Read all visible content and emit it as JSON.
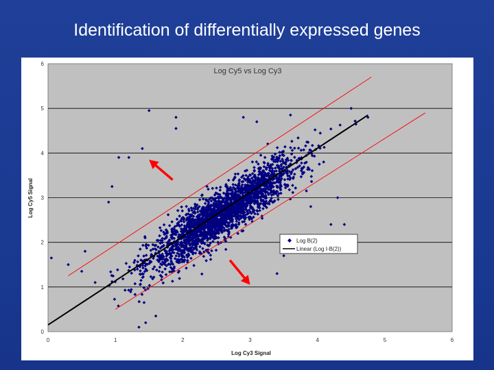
{
  "slide": {
    "title": "Identification of differentially expressed genes"
  },
  "colors": {
    "background": "#1f3f98",
    "plot_area": "#c0c0c0",
    "points": "#000080",
    "fit_line": "#000000",
    "threshold_lines": "#ff0000",
    "arrows": "#ff0000"
  },
  "chart_data": {
    "type": "scatter",
    "title": "Log Cy5 vs Log Cy3",
    "xlabel": "Log Cy3 Signal",
    "ylabel": "Log Cy5 Signal",
    "xlim": [
      0,
      6
    ],
    "ylim": [
      0,
      6
    ],
    "xticks": [
      "0",
      "1",
      "2",
      "3",
      "4",
      "5",
      "6"
    ],
    "yticks": [
      "0",
      "1",
      "2",
      "3",
      "4",
      "5",
      "6"
    ],
    "grid": "horizontal",
    "legend": {
      "placement": "right-center",
      "entries": [
        "Log B(2)",
        "Linear (Log I-B(2))"
      ]
    },
    "point_cloud": {
      "description_range": "dense cloud along y = x",
      "x_range": [
        0.8,
        4.8
      ],
      "spread": 0.25
    },
    "fit_line": {
      "x": [
        0,
        4.75
      ],
      "y": [
        0.15,
        4.85
      ]
    },
    "upper_threshold": {
      "x": [
        0.3,
        4.8
      ],
      "y": [
        1.25,
        5.7
      ]
    },
    "lower_threshold": {
      "x": [
        1.0,
        5.6
      ],
      "y": [
        0.5,
        4.9
      ]
    },
    "annotations": [
      {
        "type": "arrow",
        "from": [
          1.85,
          3.4
        ],
        "to": [
          1.5,
          3.85
        ],
        "direction": "up-left"
      },
      {
        "type": "arrow",
        "from": [
          2.7,
          1.6
        ],
        "to": [
          3.0,
          1.05
        ],
        "direction": "down-right"
      }
    ]
  }
}
